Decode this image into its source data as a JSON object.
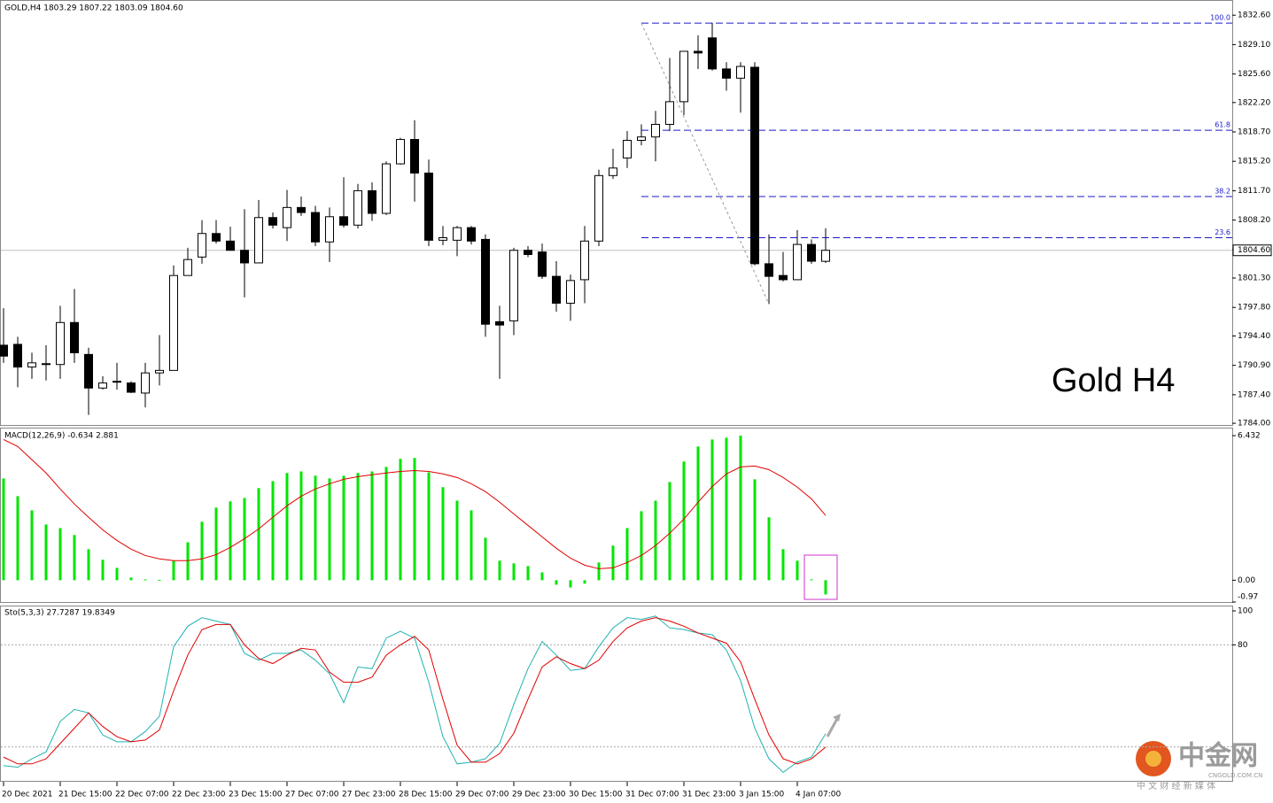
{
  "chart_data": [
    {
      "type": "candlestick",
      "title": "GOLD,H4  1803.29 1807.22 1803.09 1804.60",
      "annotation": "Gold H4",
      "categories": [
        "20 Dec 2021",
        null,
        null,
        null,
        "21 Dec 15:00",
        null,
        null,
        null,
        "22 Dec 07:00",
        null,
        null,
        null,
        "22 Dec 23:00",
        null,
        null,
        null,
        "23 Dec 15:00",
        null,
        null,
        null,
        "27 Dec 07:00",
        null,
        null,
        null,
        "27 Dec 23:00",
        null,
        null,
        null,
        "28 Dec 15:00",
        null,
        null,
        null,
        "29 Dec 07:00",
        null,
        null,
        null,
        "29 Dec 23:00",
        null,
        null,
        null,
        "30 Dec 15:00",
        null,
        null,
        null,
        "31 Dec 07:00",
        null,
        null,
        null,
        "31 Dec 23:00",
        null,
        null,
        null,
        "3 Jan 15:00",
        null,
        null,
        null,
        "4 Jan 07:00",
        null,
        null
      ],
      "open": [
        1793.3,
        1793.4,
        1790.7,
        1791.1,
        1791.0,
        1796.0,
        1792.2,
        1788.2,
        1788.9,
        1788.8,
        1787.6,
        1790.0,
        1790.3,
        1801.6,
        1803.8,
        1806.6,
        1805.7,
        1804.6,
        1803.1,
        1808.5,
        1807.3,
        1809.7,
        1809.1,
        1805.6,
        1808.6,
        1807.6,
        1811.7,
        1809.0,
        1814.9,
        1817.8,
        1813.8,
        1805.8,
        1805.8,
        1807.3,
        1805.9,
        1796.1,
        1796.2,
        1804.6,
        1804.4,
        1801.5,
        1798.3,
        1801.1,
        1805.7,
        1813.5,
        1815.6,
        1817.7,
        1818.1,
        1819.6,
        1822.3,
        1828.3,
        1829.9,
        1826.2,
        1825.1,
        1826.4,
        1803.0,
        1801.6,
        1801.1,
        1805.3,
        1803.29
      ],
      "high": [
        1797.7,
        1794.3,
        1792.4,
        1793.3,
        1798.0,
        1800.0,
        1793.0,
        1789.6,
        1791.2,
        1789.0,
        1791.2,
        1794.5,
        1802.8,
        1804.9,
        1808.2,
        1808.2,
        1807.4,
        1809.5,
        1810.6,
        1809.1,
        1811.8,
        1811.0,
        1809.9,
        1809.7,
        1813.3,
        1812.5,
        1812.7,
        1815.2,
        1818.0,
        1820.1,
        1815.4,
        1807.5,
        1807.5,
        1807.5,
        1806.5,
        1798.0,
        1804.9,
        1805.1,
        1805.4,
        1803.3,
        1801.7,
        1807.5,
        1814.2,
        1816.7,
        1818.8,
        1819.6,
        1821.2,
        1827.5,
        1828.3,
        1830.2,
        1831.7,
        1827.0,
        1827.0,
        1827.0,
        1806.5,
        1804.4,
        1807.0,
        1805.9,
        1807.22
      ],
      "low": [
        1791.2,
        1788.3,
        1789.3,
        1789.1,
        1789.3,
        1791.2,
        1785.0,
        1788.0,
        1788.0,
        1787.6,
        1785.9,
        1788.5,
        1790.3,
        1801.6,
        1803.0,
        1805.4,
        1804.6,
        1799.0,
        1803.1,
        1807.2,
        1805.7,
        1808.7,
        1805.1,
        1803.2,
        1807.3,
        1807.2,
        1808.1,
        1808.8,
        1814.8,
        1810.4,
        1805.1,
        1805.2,
        1803.9,
        1805.3,
        1794.3,
        1789.3,
        1794.5,
        1803.8,
        1801.2,
        1797.3,
        1796.2,
        1798.3,
        1805.1,
        1813.1,
        1814.4,
        1817.1,
        1815.2,
        1818.8,
        1820.7,
        1826.2,
        1826.0,
        1823.6,
        1821.0,
        1802.8,
        1798.2,
        1800.9,
        1801.1,
        1803.0,
        1803.09
      ],
      "close": [
        1792.0,
        1790.7,
        1791.2,
        1791.0,
        1796.0,
        1792.4,
        1788.2,
        1788.8,
        1789.0,
        1787.7,
        1790.0,
        1790.3,
        1801.6,
        1803.5,
        1806.6,
        1805.7,
        1804.6,
        1803.1,
        1808.5,
        1807.6,
        1809.7,
        1809.1,
        1805.6,
        1808.6,
        1807.6,
        1811.7,
        1809.0,
        1814.9,
        1817.8,
        1813.8,
        1805.8,
        1806.1,
        1807.3,
        1805.7,
        1795.8,
        1795.7,
        1804.6,
        1804.1,
        1801.5,
        1798.3,
        1801.0,
        1805.7,
        1813.5,
        1814.4,
        1817.7,
        1818.1,
        1819.6,
        1822.3,
        1828.3,
        1828.1,
        1826.2,
        1825.1,
        1826.5,
        1803.0,
        1801.5,
        1801.1,
        1805.3,
        1803.3,
        1804.6
      ],
      "up_color": "#ffffff",
      "down_color": "#000000",
      "ylim": [
        1783.8,
        1834.2
      ],
      "yticks": [
        {
          "value": 1832.6,
          "label": "1832.60"
        },
        {
          "value": 1829.1,
          "label": "1829.10"
        },
        {
          "value": 1825.6,
          "label": "1825.60"
        },
        {
          "value": 1822.2,
          "label": "1822.20"
        },
        {
          "value": 1818.7,
          "label": "1818.70"
        },
        {
          "value": 1815.2,
          "label": "1815.20"
        },
        {
          "value": 1811.7,
          "label": "1811.70"
        },
        {
          "value": 1808.2,
          "label": "1808.20"
        },
        {
          "value": 1804.7,
          "label": "1804.70"
        },
        {
          "value": 1801.3,
          "label": "1801.30"
        },
        {
          "value": 1797.8,
          "label": "1797.80"
        },
        {
          "value": 1794.4,
          "label": "1794.40"
        },
        {
          "value": 1790.9,
          "label": "1790.90"
        },
        {
          "value": 1787.4,
          "label": "1787.40"
        },
        {
          "value": 1784.0,
          "label": "1784.00"
        }
      ],
      "fib_levels": [
        {
          "level": "100.0",
          "price": 1831.65
        },
        {
          "level": "61.8",
          "price": 1818.9
        },
        {
          "level": "38.2",
          "price": 1811.0
        },
        {
          "level": "23.6",
          "price": 1806.1
        }
      ],
      "fib_color": "#1a1acd",
      "current_price": {
        "value": 1804.6,
        "label": "1804.60"
      }
    },
    {
      "type": "macd",
      "title": "MACD(12,26,9) -0.634 2.881",
      "histogram": {
        "color": "#00e600",
        "values": [
          4.53,
          3.74,
          3.11,
          2.48,
          2.32,
          2.01,
          1.38,
          0.91,
          0.55,
          0.12,
          0.04,
          0.02,
          0.87,
          1.69,
          2.6,
          3.23,
          3.51,
          3.66,
          4.1,
          4.41,
          4.77,
          4.84,
          4.65,
          4.53,
          4.65,
          4.77,
          4.84,
          5.04,
          5.4,
          5.44,
          4.8,
          4.14,
          3.54,
          3.11,
          1.89,
          0.87,
          0.75,
          0.63,
          0.35,
          -0.2,
          -0.32,
          -0.15,
          0.79,
          1.54,
          2.32,
          3.07,
          3.54,
          4.37,
          5.28,
          5.95,
          6.26,
          6.34,
          6.432,
          4.49,
          2.8,
          1.38,
          0.87,
          0.04,
          -0.634
        ]
      },
      "signal": {
        "color": "#e00000",
        "values": [
          6.26,
          5.95,
          5.36,
          4.77,
          4.06,
          3.39,
          2.8,
          2.24,
          1.77,
          1.38,
          1.1,
          0.95,
          0.87,
          0.87,
          0.95,
          1.14,
          1.46,
          1.85,
          2.28,
          2.8,
          3.31,
          3.74,
          4.06,
          4.29,
          4.49,
          4.61,
          4.69,
          4.77,
          4.84,
          4.88,
          4.84,
          4.73,
          4.57,
          4.29,
          3.94,
          3.47,
          2.95,
          2.44,
          1.93,
          1.42,
          0.98,
          0.67,
          0.51,
          0.55,
          0.79,
          1.1,
          1.54,
          2.09,
          2.72,
          3.47,
          4.17,
          4.73,
          5.04,
          5.08,
          4.92,
          4.57,
          4.14,
          3.62,
          2.881
        ]
      },
      "ylim": [
        -0.97,
        6.75
      ],
      "yticks": [
        6.432,
        {
          "value": 0,
          "label": "0.00"
        },
        -0.97
      ]
    },
    {
      "type": "stochastic",
      "title": "Sto(5,3,3) 27.7287 19.8349",
      "main": {
        "color": "#20b2b2",
        "values": [
          9,
          8,
          13,
          17,
          35,
          42,
          40,
          27,
          23,
          23,
          29,
          38,
          79,
          91,
          96,
          94,
          92,
          75,
          71,
          75,
          75,
          77,
          71,
          63,
          46,
          67,
          66,
          84,
          88,
          84,
          58,
          26,
          10,
          11,
          13,
          22,
          45,
          66,
          82,
          74,
          65,
          66,
          79,
          90,
          96,
          95,
          97,
          90,
          89,
          87,
          86,
          77,
          59,
          31,
          13,
          5,
          11,
          14,
          27.7287
        ]
      },
      "signal": {
        "color": "#e00000",
        "values": [
          14,
          10,
          10,
          13,
          22,
          31,
          40,
          32,
          26,
          23,
          24,
          30,
          53,
          74,
          89,
          92,
          92,
          80,
          72,
          69,
          74,
          78,
          77,
          64,
          58,
          58,
          61,
          74,
          80,
          85,
          77,
          48,
          21,
          11,
          11,
          16,
          28,
          48,
          67,
          73,
          69,
          66,
          71,
          82,
          90,
          94,
          96,
          94,
          91,
          87,
          84,
          81,
          70,
          48,
          27,
          13,
          10,
          13,
          19.8349
        ]
      },
      "ylim": [
        0,
        100
      ],
      "yticks": [
        100,
        80
      ],
      "levels": [
        80,
        20
      ]
    }
  ],
  "watermark": {
    "name": "中金网",
    "domain": "CNGOLD.COM.CN",
    "slogan": "中 文 财 经 新 媒 体"
  }
}
